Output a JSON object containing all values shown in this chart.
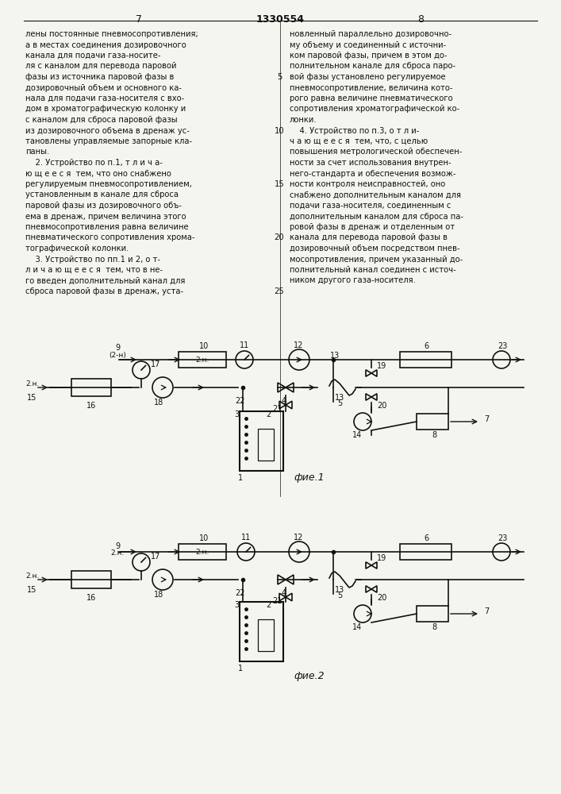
{
  "page_width": 7.07,
  "page_height": 10.0,
  "bg_color": "#f5f5f0",
  "header": {
    "left_num": "7",
    "center_num": "1330554",
    "right_num": "8"
  },
  "left_text": [
    "лены постоянные пневмосопротивления;",
    "а в местах соединения дозировочного",
    "канала для подачи газа-носите-",
    "ля с каналом для перевода паровой",
    "фазы из источника паровой фазы в",
    "дозировочный объем и основного ка-",
    "нала для подачи газа-носителя с вхо-",
    "дом в хроматографическую колонку и",
    "с каналом для сброса паровой фазы",
    "из дозировочного объема в дренаж ус-",
    "тановлены управляемые запорные кла-",
    "паны.",
    "    2. Устройство по п.1, т л и ч а-",
    "ю щ е е с я  тем, что оно снабжено",
    "регулируемым пневмосопротивлением,",
    "установленным в канале для сброса",
    "паровой фазы из дозировочного объ-",
    "ема в дренаж, причем величина этого",
    "пневмосопротивления равна величине",
    "пневматического сопротивления хрома-",
    "тографической колонки.",
    "    3. Устройство по пп.1 и 2, о т-",
    "л и ч а ю щ е е с я  тем, что в не-",
    "го введен дополнительный канал для",
    "сброса паровой фазы в дренаж, уста-"
  ],
  "right_text": [
    "новленный параллельно дозировочно-",
    "му объему и соединенный с источни-",
    "ком паровой фазы, причем в этом до-",
    "полнительном канале для сброса паро-",
    "вой фазы установлено регулируемое",
    "пневмосопротивление, величина кото-",
    "рого равна величине пневматического",
    "сопротивления хроматографической ко-",
    "лонки.",
    "    4. Устройство по п.3, о т л и-",
    "ч а ю щ е е с я  тем, что, с целью",
    "повышения метрологической обеспечен-",
    "ности за счет использования внутрен-",
    "него-стандарта и обеспечения возмож-",
    "ности контроля неисправностей, оно",
    "снабжено дополнительным каналом для",
    "подачи газа-носителя, соединенным с",
    "дополнительным каналом для сброса па-",
    "ровой фазы в дренаж и отделенным от",
    "канала для перевода паровой фазы в",
    "дозировочный объем посредством пнев-",
    "мосопротивления, причем указанный до-",
    "полнительный канал соединен с источ-",
    "ником другого газа-носителя."
  ],
  "line_numbers": [
    5,
    10,
    15,
    20,
    25
  ],
  "fig1_label": "фие.1",
  "fig2_label": "фие.2"
}
